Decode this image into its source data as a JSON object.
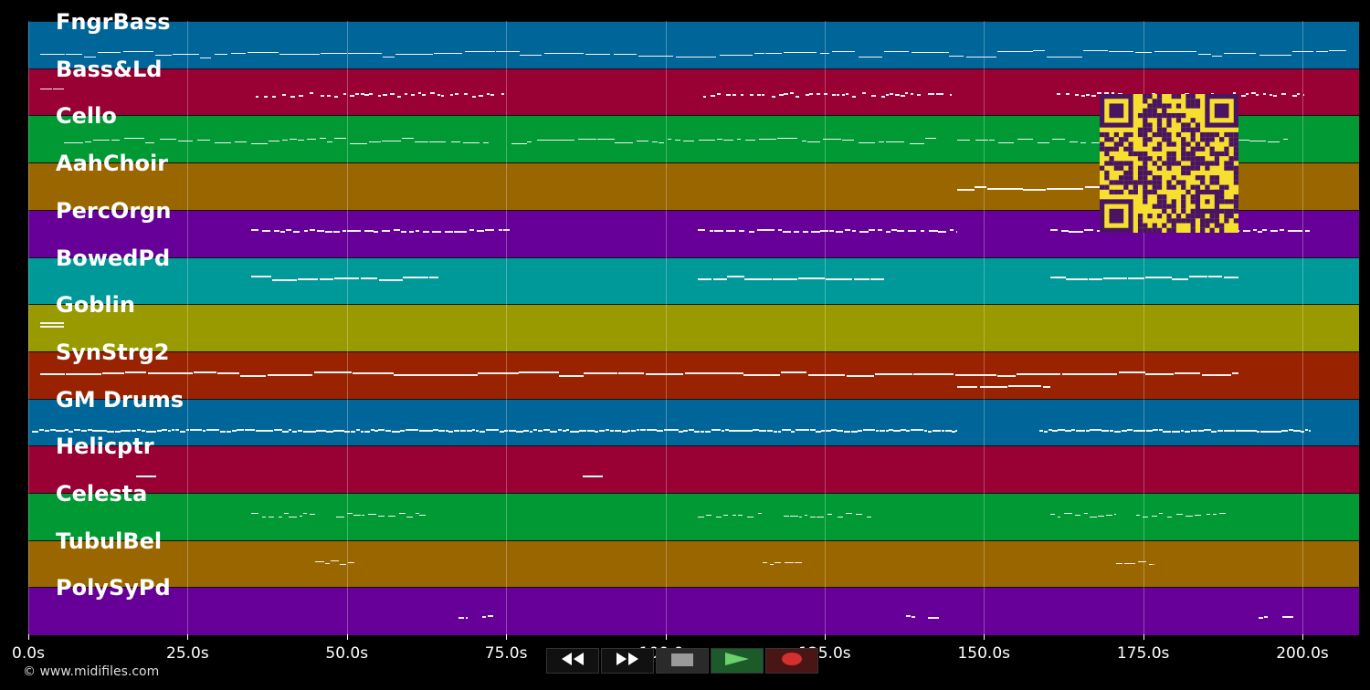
{
  "tracks": [
    {
      "name": "FngrBass",
      "color": "#006699"
    },
    {
      "name": "Bass&Ld",
      "color": "#990033"
    },
    {
      "name": "Cello",
      "color": "#009933"
    },
    {
      "name": "AahChoir",
      "color": "#996600"
    },
    {
      "name": "PercOrgn",
      "color": "#660099"
    },
    {
      "name": "BowedPd",
      "color": "#009999"
    },
    {
      "name": "Goblin",
      "color": "#999900"
    },
    {
      "name": "SynStrg2",
      "color": "#992200"
    },
    {
      "name": "GM Drums",
      "color": "#006699"
    },
    {
      "name": "Helicptr",
      "color": "#990033"
    },
    {
      "name": "Celesta",
      "color": "#009933"
    },
    {
      "name": "TubulBel",
      "color": "#996600"
    },
    {
      "name": "PolySyPd",
      "color": "#660099"
    }
  ],
  "time_axis": {
    "ticks": [
      {
        "value": 0,
        "label": "0.0s"
      },
      {
        "value": 25,
        "label": "25.0s"
      },
      {
        "value": 50,
        "label": "50.0s"
      },
      {
        "value": 75,
        "label": "75.0s"
      },
      {
        "value": 100,
        "label": "100.0s"
      },
      {
        "value": 125,
        "label": "125.0s"
      },
      {
        "value": 150,
        "label": "150.0s"
      },
      {
        "value": 175,
        "label": "175.0s"
      },
      {
        "value": 200,
        "label": "200.0s"
      }
    ],
    "max_seconds": 208.6
  },
  "copyright": "© www.midifiles.com",
  "transport": {
    "buttons": [
      {
        "name": "rewind-button",
        "icon": "rewind-icon",
        "bg": "#111111"
      },
      {
        "name": "fast-forward-button",
        "icon": "fast-forward-icon",
        "bg": "#111111"
      },
      {
        "name": "stop-button",
        "icon": "stop-icon",
        "bg": "#2a2a2a"
      },
      {
        "name": "play-button",
        "icon": "play-icon",
        "bg": "#1d5a2a"
      },
      {
        "name": "record-button",
        "icon": "record-icon",
        "bg": "#4a1515"
      }
    ]
  },
  "qr_code": {
    "fg": "#4a1560",
    "bg": "#f7df2f"
  }
}
